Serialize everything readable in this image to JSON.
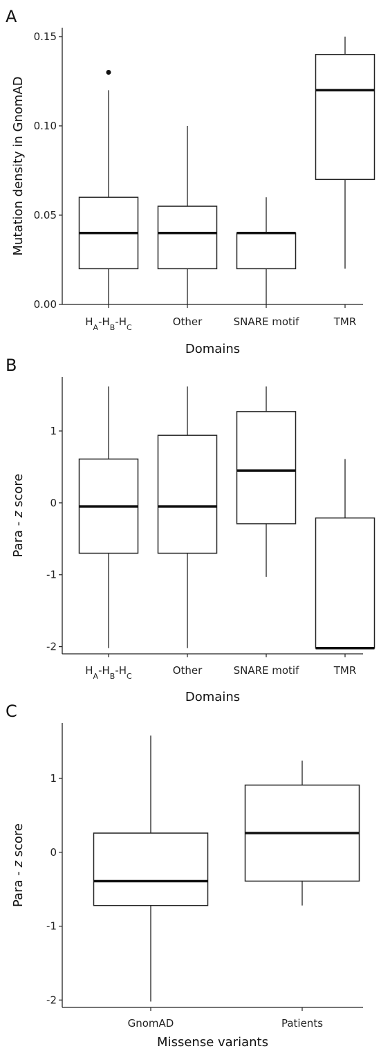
{
  "chart_data": [
    {
      "panel": "A",
      "type": "box",
      "xlabel": "Domains",
      "ylabel": "Mutation density in GnomAD",
      "ylim": [
        0.0,
        0.155
      ],
      "yticks": [
        "0.00",
        "0.05",
        "0.10",
        "0.15"
      ],
      "ytick_values": [
        0.0,
        0.05,
        0.1,
        0.15
      ],
      "categories": [
        "HA-HB-HC",
        "Other",
        "SNARE motif",
        "TMR"
      ],
      "category_labels": [
        {
          "parts": [
            [
              "H",
              ""
            ],
            [
              "A",
              "sub"
            ],
            [
              "-H",
              ""
            ],
            [
              "B",
              "sub"
            ],
            [
              "-H",
              ""
            ],
            [
              "C",
              "sub"
            ]
          ]
        },
        {
          "parts": [
            [
              "Other",
              ""
            ]
          ]
        },
        {
          "parts": [
            [
              "SNARE motif",
              ""
            ]
          ]
        },
        {
          "parts": [
            [
              "TMR",
              ""
            ]
          ]
        }
      ],
      "boxes": [
        {
          "whisker_low": 0.0,
          "q1": 0.02,
          "median": 0.04,
          "q3": 0.06,
          "whisker_high": 0.12,
          "outliers": [
            0.13
          ]
        },
        {
          "whisker_low": 0.0,
          "q1": 0.02,
          "median": 0.04,
          "q3": 0.055,
          "whisker_high": 0.1,
          "outliers": []
        },
        {
          "whisker_low": 0.0,
          "q1": 0.02,
          "median": 0.04,
          "q3": 0.04,
          "whisker_high": 0.06,
          "outliers": []
        },
        {
          "whisker_low": 0.02,
          "q1": 0.07,
          "median": 0.12,
          "q3": 0.14,
          "whisker_high": 0.15,
          "outliers": []
        }
      ]
    },
    {
      "panel": "B",
      "type": "box",
      "xlabel": "Domains",
      "ylabel": "Para - z score",
      "ylabel_parts": [
        [
          "Para -  ",
          ""
        ],
        [
          "z",
          "italic"
        ],
        [
          " score",
          ""
        ]
      ],
      "ylim": [
        -2.1,
        1.75
      ],
      "yticks": [
        "-2",
        "-1",
        "0",
        "1"
      ],
      "ytick_values": [
        -2,
        -1,
        0,
        1
      ],
      "categories": [
        "HA-HB-HC",
        "Other",
        "SNARE motif",
        "TMR"
      ],
      "category_labels": [
        {
          "parts": [
            [
              "H",
              ""
            ],
            [
              "A",
              "sub"
            ],
            [
              "-H",
              ""
            ],
            [
              "B",
              "sub"
            ],
            [
              "-H",
              ""
            ],
            [
              "C",
              "sub"
            ]
          ]
        },
        {
          "parts": [
            [
              "Other",
              ""
            ]
          ]
        },
        {
          "parts": [
            [
              "SNARE motif",
              ""
            ]
          ]
        },
        {
          "parts": [
            [
              "TMR",
              ""
            ]
          ]
        }
      ],
      "boxes": [
        {
          "whisker_low": -2.02,
          "q1": -0.7,
          "median": -0.05,
          "q3": 0.61,
          "whisker_high": 1.62,
          "outliers": []
        },
        {
          "whisker_low": -2.02,
          "q1": -0.7,
          "median": -0.05,
          "q3": 0.94,
          "whisker_high": 1.62,
          "outliers": []
        },
        {
          "whisker_low": -1.03,
          "q1": -0.29,
          "median": 0.45,
          "q3": 1.27,
          "whisker_high": 1.62,
          "outliers": []
        },
        {
          "whisker_low": -2.02,
          "q1": -2.02,
          "median": -2.02,
          "q3": -0.21,
          "whisker_high": 0.61,
          "outliers": []
        }
      ]
    },
    {
      "panel": "C",
      "type": "box",
      "xlabel": "Missense variants",
      "ylabel": "Para - z score",
      "ylabel_parts": [
        [
          "Para -  ",
          ""
        ],
        [
          "z",
          "italic"
        ],
        [
          " score",
          ""
        ]
      ],
      "ylim": [
        -2.1,
        1.75
      ],
      "yticks": [
        "-2",
        "-1",
        "0",
        "1"
      ],
      "ytick_values": [
        -2,
        -1,
        0,
        1
      ],
      "categories": [
        "GnomAD",
        "Patients"
      ],
      "category_labels": [
        {
          "parts": [
            [
              "GnomAD",
              ""
            ]
          ]
        },
        {
          "parts": [
            [
              "Patients",
              ""
            ]
          ]
        }
      ],
      "boxes": [
        {
          "whisker_low": -2.02,
          "q1": -0.72,
          "median": -0.39,
          "q3": 0.26,
          "whisker_high": 1.58,
          "outliers": []
        },
        {
          "whisker_low": -0.72,
          "q1": -0.39,
          "median": 0.26,
          "q3": 0.91,
          "whisker_high": 1.24,
          "outliers": []
        }
      ]
    }
  ]
}
